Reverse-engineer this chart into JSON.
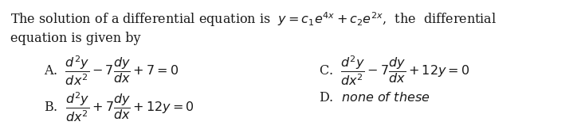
{
  "background_color": "#ffffff",
  "text_color": "#1a1a1a",
  "fig_width": 7.34,
  "fig_height": 1.68,
  "dpi": 100,
  "main_line1": "The solution of a differential equation is  $y = c_1e^{4x} + c_2e^{2x}$,  the  differential",
  "main_line2": "equation is given by",
  "optA": "A.  $\\dfrac{d^2y}{dx^2} - 7\\dfrac{dy}{dx} + 7 = 0$",
  "optB": "B.  $\\dfrac{d^2y}{dx^2} + 7\\dfrac{dy}{dx} + 12y = 0$",
  "optC": "C.  $\\dfrac{d^2y}{dx^2} - 7\\dfrac{dy}{dx} + 12y = 0$",
  "optD": "D.  $\\it{none\\ of\\ these}$",
  "fontsize_main": 11.5,
  "fontsize_opts": 11.5
}
